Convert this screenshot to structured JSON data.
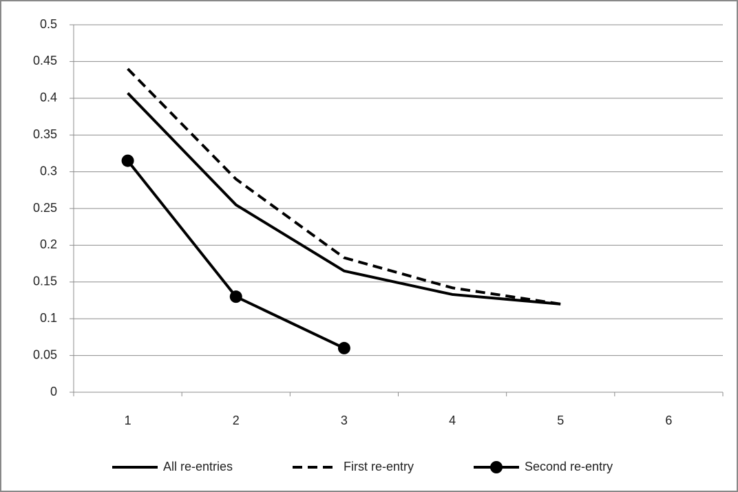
{
  "chart_data": {
    "type": "line",
    "categories": [
      "1",
      "2",
      "3",
      "4",
      "5",
      "6"
    ],
    "series": [
      {
        "name": "All re-entries",
        "color": "#000000",
        "style": "solid",
        "values": [
          0.407,
          0.255,
          0.165,
          0.133,
          0.12,
          null
        ]
      },
      {
        "name": "First re-entry",
        "color": "#000000",
        "style": "dashed",
        "values": [
          0.44,
          0.29,
          0.183,
          0.142,
          0.12,
          null
        ]
      },
      {
        "name": "Second re-entry",
        "color": "#000000",
        "style": "marker",
        "values": [
          0.315,
          0.13,
          0.06,
          null,
          null,
          null
        ]
      }
    ],
    "ylim": [
      0,
      0.5
    ],
    "yticks": [
      0,
      0.05,
      0.1,
      0.15,
      0.2,
      0.25,
      0.3,
      0.35,
      0.4,
      0.45,
      0.5
    ],
    "grid": true,
    "legend": "bottom"
  }
}
